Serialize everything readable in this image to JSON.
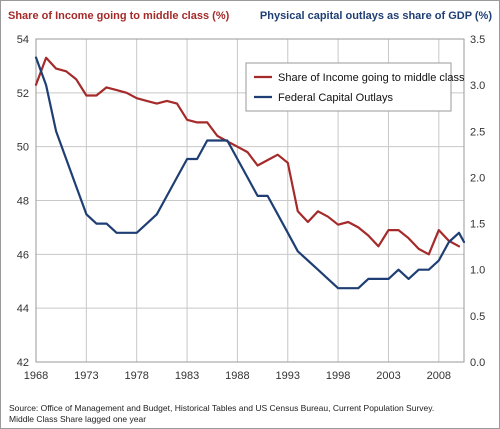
{
  "chart_data": {
    "type": "line",
    "left_axis_label": "Share of Income going to middle class (%)",
    "right_axis_label": "Physical capital outlays as share of GDP (%)",
    "x_ticks": [
      "1968",
      "1973",
      "1978",
      "1983",
      "1988",
      "1993",
      "1998",
      "2003",
      "2008"
    ],
    "left_ticks": [
      "42",
      "44",
      "46",
      "48",
      "50",
      "52",
      "54"
    ],
    "right_ticks": [
      "0.0",
      "0.5",
      "1.0",
      "1.5",
      "2.0",
      "2.5",
      "3.0",
      "3.5"
    ],
    "xlim": [
      1968,
      2010.5
    ],
    "ylim_left": [
      42,
      54
    ],
    "ylim_right": [
      0,
      3.5
    ],
    "grid": true,
    "legend_position": "top-right",
    "series": [
      {
        "name": "Share of Income going to middle class",
        "axis": "left",
        "color": "#a52a2a",
        "x": [
          1968,
          1969,
          1970,
          1971,
          1972,
          1973,
          1974,
          1975,
          1976,
          1977,
          1978,
          1979,
          1980,
          1981,
          1982,
          1983,
          1984,
          1985,
          1986,
          1987,
          1988,
          1989,
          1990,
          1991,
          1992,
          1993,
          1994,
          1995,
          1996,
          1997,
          1998,
          1999,
          2000,
          2001,
          2002,
          2003,
          2004,
          2005,
          2006,
          2007,
          2008,
          2009,
          2010
        ],
        "values": [
          52.3,
          53.3,
          52.9,
          52.8,
          52.5,
          51.9,
          51.9,
          52.2,
          52.1,
          52.0,
          51.8,
          51.7,
          51.6,
          51.7,
          51.6,
          51.0,
          50.9,
          50.9,
          50.4,
          50.2,
          50.0,
          49.8,
          49.3,
          49.5,
          49.7,
          49.4,
          47.6,
          47.2,
          47.6,
          47.4,
          47.1,
          47.2,
          47.0,
          46.7,
          46.3,
          46.9,
          46.9,
          46.6,
          46.2,
          46.0,
          46.9,
          46.5,
          46.3
        ]
      },
      {
        "name": "Federal Capital Outlays",
        "axis": "right",
        "color": "#1f3f74",
        "x": [
          1968,
          1969,
          1970,
          1971,
          1972,
          1973,
          1974,
          1975,
          1976,
          1977,
          1978,
          1979,
          1980,
          1981,
          1982,
          1983,
          1984,
          1985,
          1986,
          1987,
          1988,
          1989,
          1990,
          1991,
          1992,
          1993,
          1994,
          1995,
          1996,
          1997,
          1998,
          1999,
          2000,
          2001,
          2002,
          2003,
          2004,
          2005,
          2006,
          2007,
          2008,
          2009,
          2010,
          2010.5
        ],
        "values": [
          3.3,
          3.0,
          2.5,
          2.2,
          1.9,
          1.6,
          1.5,
          1.5,
          1.4,
          1.4,
          1.4,
          1.5,
          1.6,
          1.8,
          2.0,
          2.2,
          2.2,
          2.4,
          2.4,
          2.4,
          2.2,
          2.0,
          1.8,
          1.8,
          1.6,
          1.4,
          1.2,
          1.1,
          1.0,
          0.9,
          0.8,
          0.8,
          0.8,
          0.9,
          0.9,
          0.9,
          1.0,
          0.9,
          1.0,
          1.0,
          1.1,
          1.3,
          1.4,
          1.3
        ]
      }
    ]
  },
  "source": {
    "line1": "Source: Office of Management and Budget, Historical Tables and US Census Bureau, Current Population Survey.",
    "line2": "Middle Class Share lagged one year"
  },
  "colors": {
    "red": "#a52a2a",
    "blue": "#1f3f74",
    "grid": "#c8c8c8"
  }
}
